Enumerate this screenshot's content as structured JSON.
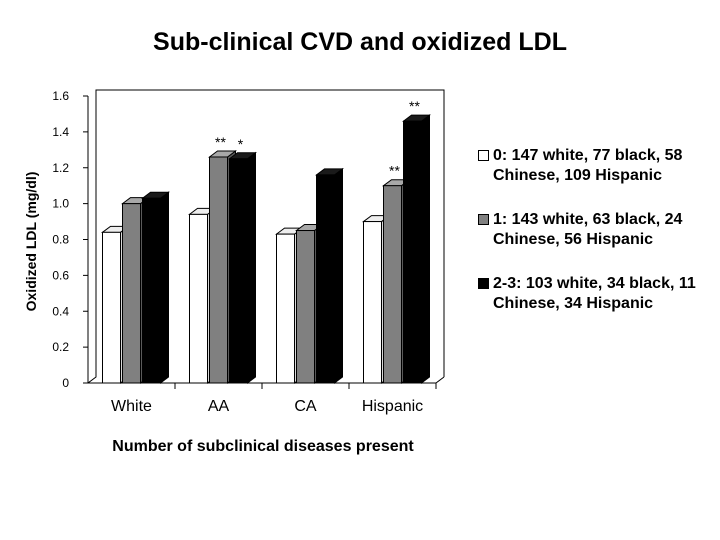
{
  "chart_data": {
    "type": "bar",
    "title": "Sub-clinical CVD and oxidized LDL",
    "xlabel": "Number of subclinical diseases present",
    "ylabel": "Oxidized LDL (mg/dl)",
    "ylim": [
      0,
      1.6
    ],
    "yticks": [
      "1.6",
      "1.4",
      "1.2",
      "1.0",
      "0.8",
      "0.6",
      "0.4",
      "0.2",
      "0"
    ],
    "ytick_values": [
      1.6,
      1.4,
      1.2,
      1.0,
      0.8,
      0.6,
      0.4,
      0.2,
      0
    ],
    "categories": [
      "White",
      "AA",
      "CA",
      "Hispanic"
    ],
    "series": [
      {
        "name": "0: 147 white, 77 black, 58 Chinese, 109 Hispanic",
        "values": [
          0.84,
          0.94,
          0.83,
          0.9
        ],
        "color": "#ffffff"
      },
      {
        "name": "1: 143 white, 63 black, 24 Chinese, 56 Hispanic",
        "values": [
          1.0,
          1.26,
          0.85,
          1.1
        ],
        "color": "#808080"
      },
      {
        "name": "2-3: 103 white, 34 black, 11 Chinese, 34 Hispanic",
        "values": [
          1.03,
          1.25,
          1.16,
          1.46
        ],
        "color": "#000000"
      }
    ],
    "annotations": [
      {
        "text": "**",
        "category": "AA",
        "series": 1
      },
      {
        "text": "*",
        "category": "AA",
        "series": 2
      },
      {
        "text": "**",
        "category": "Hispanic",
        "series": 1
      },
      {
        "text": "**",
        "category": "Hispanic",
        "series": 2
      }
    ],
    "grid": false,
    "legend_position": "right"
  }
}
